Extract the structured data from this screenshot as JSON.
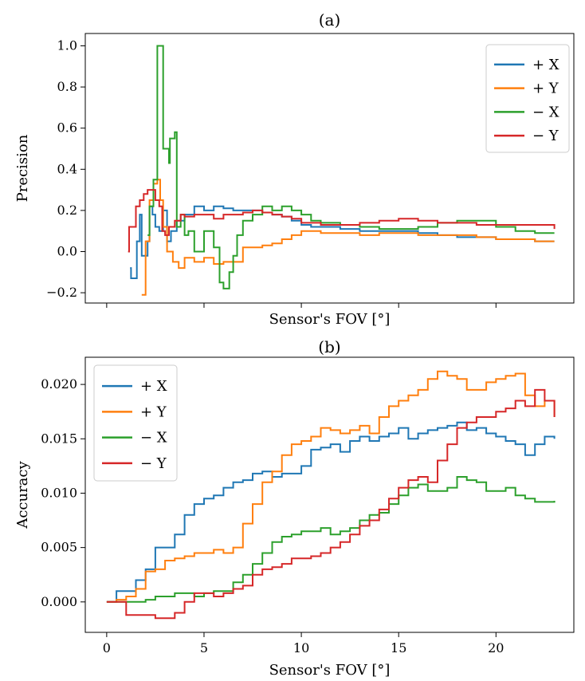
{
  "chart_data": [
    {
      "type": "line",
      "title": "(a)",
      "xlabel": "Sensor's FOV [°]",
      "ylabel": "Precision",
      "xlim": [
        -1.1,
        24.0
      ],
      "ylim": [
        -0.25,
        1.06
      ],
      "yticks": [
        -0.2,
        0.0,
        0.2,
        0.4,
        0.6,
        0.8,
        1.0
      ],
      "ytick_labels": [
        "−0.2",
        "0.0",
        "0.2",
        "0.4",
        "0.6",
        "0.8",
        "1.0"
      ],
      "xticks": [
        0,
        5,
        10,
        15,
        20
      ],
      "xtick_labels_shown": false,
      "grid": false,
      "legend_position": "top-right",
      "series": [
        {
          "name": "+ X",
          "color": "#1f77b4",
          "x": [
            1.2,
            1.25,
            1.4,
            1.55,
            1.7,
            1.8,
            1.95,
            2.1,
            2.2,
            2.35,
            2.5,
            2.7,
            2.9,
            3.1,
            3.3,
            3.6,
            4.0,
            4.5,
            5.0,
            5.5,
            6.0,
            6.5,
            7.0,
            7.5,
            8.0,
            8.5,
            9.0,
            9.5,
            10.0,
            10.5,
            11.0,
            12.0,
            13.0,
            14.0,
            15.0,
            16.0,
            17.0,
            18.0,
            19.0,
            20.0,
            21.0,
            22.0,
            23.0
          ],
          "y": [
            -0.08,
            -0.13,
            -0.13,
            0.05,
            0.18,
            -0.02,
            -0.02,
            0.05,
            0.22,
            0.18,
            0.12,
            0.1,
            0.2,
            0.05,
            0.1,
            0.15,
            0.18,
            0.22,
            0.2,
            0.22,
            0.21,
            0.2,
            0.2,
            0.2,
            0.19,
            0.18,
            0.17,
            0.15,
            0.13,
            0.12,
            0.12,
            0.11,
            0.1,
            0.1,
            0.1,
            0.09,
            0.08,
            0.07,
            0.07,
            0.06,
            0.06,
            0.05,
            0.05
          ]
        },
        {
          "name": "+ Y",
          "color": "#ff7f0e",
          "x": [
            1.8,
            1.9,
            2.0,
            2.2,
            2.4,
            2.6,
            2.75,
            2.9,
            3.1,
            3.4,
            3.7,
            4.0,
            4.5,
            5.0,
            5.5,
            6.0,
            6.5,
            7.0,
            7.5,
            8.0,
            8.5,
            9.0,
            9.5,
            10.0,
            10.5,
            11.0,
            12.0,
            13.0,
            14.0,
            15.0,
            16.0,
            17.0,
            18.0,
            19.0,
            20.0,
            21.0,
            22.0,
            23.0
          ],
          "y": [
            -0.21,
            -0.21,
            0.05,
            0.25,
            0.33,
            0.35,
            0.25,
            0.12,
            0.0,
            -0.05,
            -0.08,
            -0.03,
            -0.05,
            -0.03,
            -0.06,
            -0.05,
            -0.05,
            0.02,
            0.02,
            0.03,
            0.04,
            0.06,
            0.08,
            0.1,
            0.1,
            0.09,
            0.09,
            0.08,
            0.09,
            0.09,
            0.08,
            0.08,
            0.08,
            0.07,
            0.06,
            0.06,
            0.05,
            0.05
          ]
        },
        {
          "name": "− X",
          "color": "#2ca02c",
          "x": [
            2.1,
            2.2,
            2.4,
            2.6,
            2.7,
            2.9,
            3.0,
            3.2,
            3.25,
            3.4,
            3.5,
            3.6,
            3.8,
            4.0,
            4.2,
            4.5,
            5.0,
            5.5,
            5.8,
            6.0,
            6.3,
            6.5,
            6.7,
            7.0,
            7.5,
            8.0,
            8.5,
            9.0,
            9.5,
            10.0,
            10.5,
            11.0,
            12.0,
            13.0,
            14.0,
            15.0,
            16.0,
            17.0,
            18.0,
            19.0,
            20.0,
            21.0,
            22.0,
            23.0
          ],
          "y": [
            0.08,
            0.22,
            0.35,
            1.0,
            1.0,
            0.5,
            0.5,
            0.43,
            0.55,
            0.55,
            0.58,
            0.12,
            0.18,
            0.08,
            0.1,
            0.0,
            0.1,
            0.02,
            -0.15,
            -0.18,
            -0.1,
            -0.02,
            0.08,
            0.15,
            0.18,
            0.22,
            0.2,
            0.22,
            0.2,
            0.18,
            0.15,
            0.14,
            0.13,
            0.12,
            0.11,
            0.11,
            0.12,
            0.14,
            0.15,
            0.15,
            0.12,
            0.1,
            0.09,
            0.09
          ]
        },
        {
          "name": "− Y",
          "color": "#d62728",
          "x": [
            1.1,
            1.15,
            1.3,
            1.5,
            1.7,
            1.9,
            2.1,
            2.3,
            2.5,
            2.7,
            2.85,
            3.0,
            3.2,
            3.5,
            3.8,
            4.0,
            4.5,
            5.0,
            5.5,
            6.0,
            6.5,
            7.0,
            7.5,
            8.0,
            8.5,
            9.0,
            9.5,
            10.0,
            10.5,
            11.0,
            12.0,
            13.0,
            14.0,
            15.0,
            16.0,
            17.0,
            18.0,
            19.0,
            20.0,
            21.0,
            22.0,
            23.0
          ],
          "y": [
            0.0,
            0.12,
            0.12,
            0.22,
            0.25,
            0.28,
            0.3,
            0.3,
            0.25,
            0.22,
            0.1,
            0.08,
            0.12,
            0.15,
            0.18,
            0.17,
            0.18,
            0.18,
            0.16,
            0.18,
            0.18,
            0.19,
            0.2,
            0.19,
            0.18,
            0.17,
            0.16,
            0.14,
            0.14,
            0.13,
            0.13,
            0.14,
            0.15,
            0.16,
            0.15,
            0.14,
            0.14,
            0.13,
            0.13,
            0.13,
            0.13,
            0.11
          ]
        }
      ]
    },
    {
      "type": "line",
      "title": "(b)",
      "xlabel": "Sensor's FOV [°]",
      "ylabel": "Accuracy",
      "xlim": [
        -1.1,
        24.0
      ],
      "ylim": [
        -0.0028,
        0.0225
      ],
      "xticks": [
        0,
        5,
        10,
        15,
        20
      ],
      "xtick_labels": [
        "0",
        "5",
        "10",
        "15",
        "20"
      ],
      "yticks": [
        0.0,
        0.005,
        0.01,
        0.015,
        0.02
      ],
      "ytick_labels": [
        "0.000",
        "0.005",
        "0.010",
        "0.015",
        "0.020"
      ],
      "grid": false,
      "legend_position": "top-left",
      "series": [
        {
          "name": "+ X",
          "color": "#1f77b4",
          "x": [
            0,
            0.5,
            1.0,
            1.5,
            2.0,
            2.5,
            3.0,
            3.5,
            4.0,
            4.5,
            5.0,
            5.5,
            6.0,
            6.5,
            7.0,
            7.5,
            8.0,
            8.5,
            9.0,
            9.5,
            10.0,
            10.5,
            11.0,
            11.5,
            12.0,
            12.5,
            13.0,
            13.5,
            14.0,
            14.5,
            15.0,
            15.5,
            16.0,
            16.5,
            17.0,
            17.5,
            18.0,
            18.5,
            19.0,
            19.5,
            20.0,
            20.5,
            21.0,
            21.5,
            22.0,
            22.5,
            23.0
          ],
          "y": [
            0.0,
            0.001,
            0.001,
            0.002,
            0.003,
            0.005,
            0.005,
            0.0062,
            0.008,
            0.009,
            0.0095,
            0.0098,
            0.0105,
            0.011,
            0.0112,
            0.0118,
            0.012,
            0.0115,
            0.0118,
            0.0118,
            0.0125,
            0.014,
            0.0142,
            0.0145,
            0.0138,
            0.0148,
            0.0152,
            0.0148,
            0.0152,
            0.0155,
            0.016,
            0.015,
            0.0155,
            0.0158,
            0.016,
            0.0162,
            0.0165,
            0.0158,
            0.016,
            0.0155,
            0.0152,
            0.0148,
            0.0145,
            0.0135,
            0.0145,
            0.0152,
            0.015
          ]
        },
        {
          "name": "+ Y",
          "color": "#ff7f0e",
          "x": [
            0,
            0.5,
            1.0,
            1.5,
            2.0,
            2.5,
            3.0,
            3.5,
            4.0,
            4.5,
            5.0,
            5.5,
            6.0,
            6.5,
            7.0,
            7.5,
            8.0,
            8.5,
            9.0,
            9.5,
            10.0,
            10.5,
            11.0,
            11.5,
            12.0,
            12.5,
            13.0,
            13.5,
            14.0,
            14.5,
            15.0,
            15.5,
            16.0,
            16.5,
            17.0,
            17.5,
            18.0,
            18.5,
            19.0,
            19.5,
            20.0,
            20.5,
            21.0,
            21.5,
            22.0,
            22.5,
            23.0
          ],
          "y": [
            0.0,
            0.0002,
            0.0005,
            0.0012,
            0.0028,
            0.003,
            0.0038,
            0.004,
            0.0042,
            0.0045,
            0.0045,
            0.0048,
            0.0045,
            0.005,
            0.0072,
            0.009,
            0.011,
            0.012,
            0.0135,
            0.0145,
            0.0148,
            0.0152,
            0.016,
            0.0158,
            0.0155,
            0.0158,
            0.0162,
            0.0155,
            0.017,
            0.018,
            0.0185,
            0.019,
            0.0195,
            0.0205,
            0.0212,
            0.0208,
            0.0205,
            0.0195,
            0.0195,
            0.0202,
            0.0205,
            0.0208,
            0.021,
            0.019,
            0.018,
            0.0185,
            0.017
          ]
        },
        {
          "name": "− X",
          "color": "#2ca02c",
          "x": [
            0,
            0.5,
            1.0,
            1.5,
            2.0,
            2.5,
            3.0,
            3.5,
            4.0,
            4.5,
            5.0,
            5.5,
            6.0,
            6.5,
            7.0,
            7.5,
            8.0,
            8.5,
            9.0,
            9.5,
            10.0,
            10.5,
            11.0,
            11.5,
            12.0,
            12.5,
            13.0,
            13.5,
            14.0,
            14.5,
            15.0,
            15.5,
            16.0,
            16.5,
            17.0,
            17.5,
            18.0,
            18.5,
            19.0,
            19.5,
            20.0,
            20.5,
            21.0,
            21.5,
            22.0,
            22.5,
            23.0
          ],
          "y": [
            0.0,
            0.0,
            0.0,
            0.0,
            0.0002,
            0.0005,
            0.0005,
            0.0008,
            0.0008,
            0.0005,
            0.0008,
            0.001,
            0.001,
            0.0018,
            0.0025,
            0.0035,
            0.0045,
            0.0055,
            0.006,
            0.0062,
            0.0065,
            0.0065,
            0.0068,
            0.0062,
            0.0065,
            0.0068,
            0.0075,
            0.008,
            0.0082,
            0.009,
            0.0098,
            0.0105,
            0.0108,
            0.0102,
            0.0102,
            0.0105,
            0.0115,
            0.0112,
            0.011,
            0.0102,
            0.0102,
            0.0105,
            0.0098,
            0.0095,
            0.0092,
            0.0092,
            0.0093
          ]
        },
        {
          "name": "− Y",
          "color": "#d62728",
          "x": [
            0,
            0.5,
            1.0,
            1.5,
            2.0,
            2.5,
            3.0,
            3.5,
            4.0,
            4.5,
            5.0,
            5.5,
            6.0,
            6.5,
            7.0,
            7.5,
            8.0,
            8.5,
            9.0,
            9.5,
            10.0,
            10.5,
            11.0,
            11.5,
            12.0,
            12.5,
            13.0,
            13.5,
            14.0,
            14.5,
            15.0,
            15.5,
            16.0,
            16.5,
            17.0,
            17.5,
            18.0,
            18.5,
            19.0,
            19.5,
            20.0,
            20.5,
            21.0,
            21.5,
            22.0,
            22.5,
            23.0
          ],
          "y": [
            0.0,
            0.0,
            -0.0012,
            -0.0012,
            -0.0012,
            -0.0015,
            -0.0015,
            -0.001,
            0.0,
            0.0008,
            0.0008,
            0.0005,
            0.0008,
            0.0012,
            0.0015,
            0.0025,
            0.003,
            0.0032,
            0.0035,
            0.004,
            0.004,
            0.0042,
            0.0045,
            0.005,
            0.0055,
            0.0062,
            0.007,
            0.0075,
            0.0085,
            0.0095,
            0.0105,
            0.0112,
            0.0115,
            0.011,
            0.013,
            0.0145,
            0.016,
            0.0165,
            0.017,
            0.017,
            0.0175,
            0.0178,
            0.0185,
            0.018,
            0.0195,
            0.0185,
            0.017
          ]
        }
      ]
    }
  ]
}
